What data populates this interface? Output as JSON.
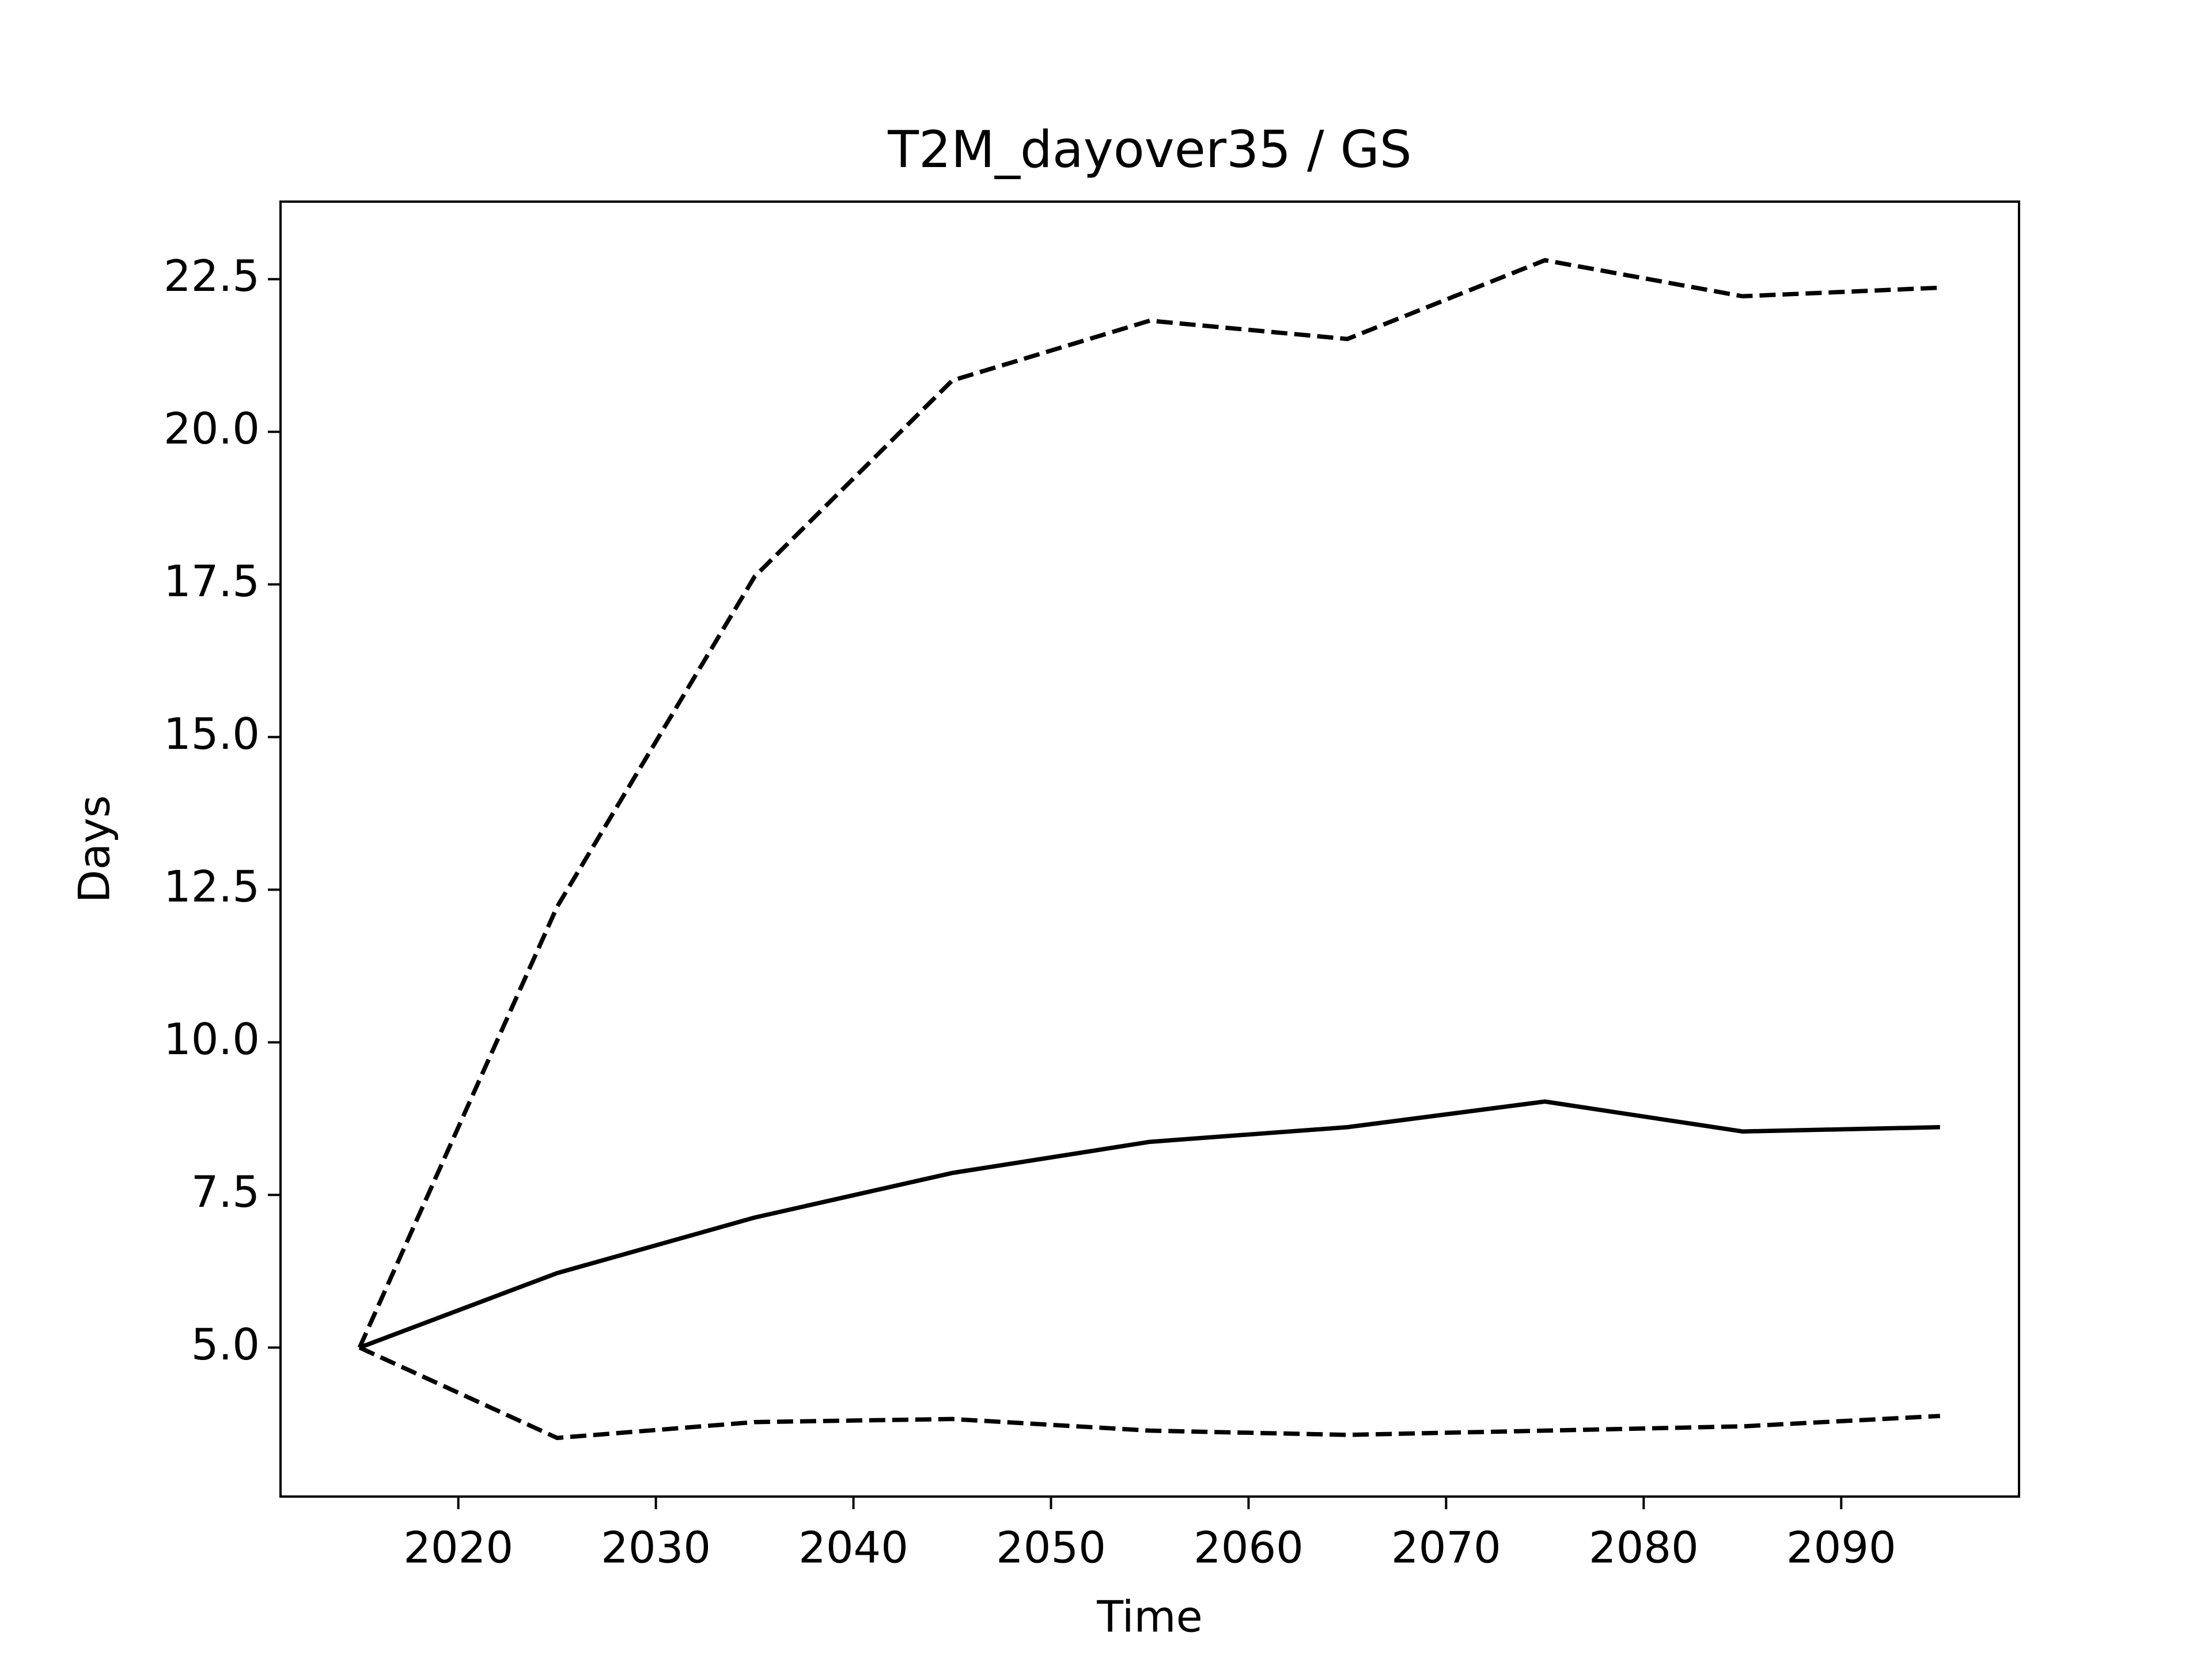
{
  "chart_data": {
    "type": "line",
    "title": "T2M_dayover35 / GS",
    "xlabel": "Time",
    "ylabel": "Days",
    "x": [
      2015,
      2025,
      2035,
      2045,
      2055,
      2065,
      2075,
      2085,
      2095
    ],
    "series": [
      {
        "color": "#000000",
        "linestyle": "solid",
        "values": [
          5.0,
          6.22,
          7.13,
          7.86,
          8.37,
          8.61,
          9.03,
          8.54,
          8.61
        ]
      },
      {
        "color": "#000000",
        "linestyle": "dashed",
        "values": [
          5.0,
          12.22,
          17.63,
          20.84,
          21.82,
          21.52,
          22.81,
          22.22,
          22.36
        ]
      },
      {
        "color": "#000000",
        "linestyle": "dashed",
        "values": [
          5.0,
          3.52,
          3.78,
          3.83,
          3.64,
          3.57,
          3.64,
          3.71,
          3.88
        ]
      }
    ],
    "xlim": [
      2011,
      2099
    ],
    "ylim": [
      2.56,
      23.77
    ],
    "xticks": [
      2020,
      2030,
      2040,
      2050,
      2060,
      2070,
      2080,
      2090
    ],
    "yticks": [
      {
        "value": 5,
        "label": "5.0"
      },
      7.5,
      {
        "value": 10,
        "label": "10.0"
      },
      12.5,
      {
        "value": 15,
        "label": "15.0"
      },
      17.5,
      {
        "value": 20,
        "label": "20.0"
      },
      22.5
    ],
    "grid": false
  }
}
